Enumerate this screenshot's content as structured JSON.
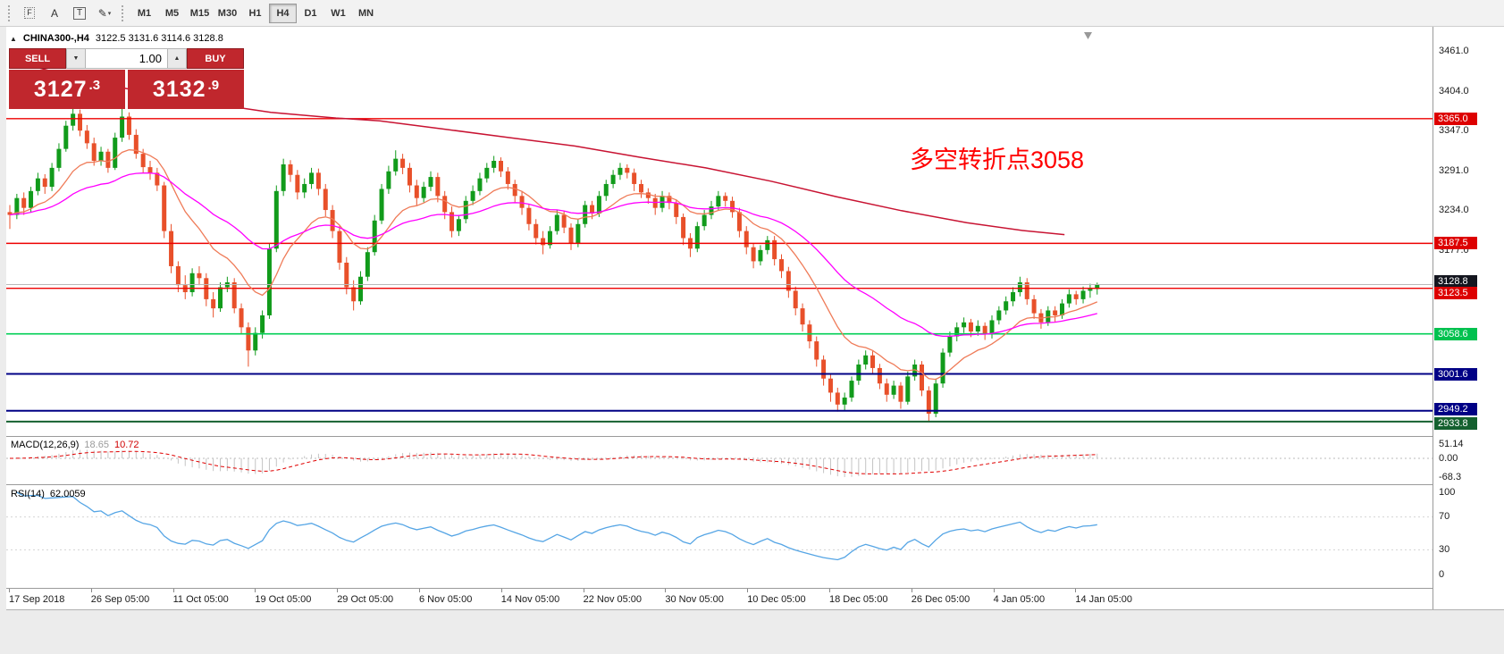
{
  "glyphs": {
    "panel_toggle": "▲",
    "caret_down": "▼",
    "caret_up": "▲",
    "caret_small": "▾"
  },
  "colors": {
    "candle_up": "#119b1b",
    "candle_down": "#e8502a",
    "ma_fast": "#ef7b58",
    "ma_medium": "#ff00ff",
    "ma_slow": "#c81332",
    "macd_hist": "#c4c4c4",
    "macd_signal": "#e00000",
    "rsi_line": "#55a5e5",
    "accent_red": "#c0272d",
    "annotation_red": "#ff0000"
  },
  "toolbar": {
    "icons": [
      {
        "name": "dotted-grid-f-icon",
        "glyph": "F",
        "dotted": true
      },
      {
        "name": "text-annotation-icon",
        "glyph": "A"
      },
      {
        "name": "text-box-icon",
        "glyph": "T",
        "boxed": true
      },
      {
        "name": "draw-tools-icon",
        "glyph": "✎",
        "has_caret": true
      }
    ],
    "timeframes": [
      {
        "label": "M1"
      },
      {
        "label": "M5"
      },
      {
        "label": "M15"
      },
      {
        "label": "M30"
      },
      {
        "label": "H1"
      },
      {
        "label": "H4",
        "active": true
      },
      {
        "label": "D1"
      },
      {
        "label": "W1"
      },
      {
        "label": "MN"
      }
    ]
  },
  "header": {
    "symbol": "CHINA300-,H4",
    "ohlc": "3122.5 3131.6 3114.6 3128.8"
  },
  "trade_panel": {
    "sell_label": "SELL",
    "buy_label": "BUY",
    "volume": "1.00",
    "sell_price_main": "3127",
    "sell_price_frac": ".3",
    "buy_price_main": "3132",
    "buy_price_frac": ".9"
  },
  "annotation": {
    "text": "多空转折点3058",
    "color": "#ff0000"
  },
  "indicators": {
    "macd": {
      "label": "MACD(12,26,9)",
      "value_main": "18.65",
      "value_signal": "10.72"
    },
    "rsi": {
      "label": "RSI(14)",
      "value": "62.0059"
    }
  },
  "chart_data": {
    "type": "candlestick",
    "symbol": "CHINA300-",
    "timeframe": "H4",
    "price_ticks": [
      3461.0,
      3404.0,
      3347.0,
      3291.0,
      3234.0,
      3177.0
    ],
    "levels": [
      {
        "price": 3365.0,
        "label": "3365.0",
        "color": "#ee0000",
        "tag_bg": "#dd0000",
        "width": 1.4
      },
      {
        "price": 3187.5,
        "label": "3187.5",
        "color": "#ee0000",
        "tag_bg": "#dd0000",
        "width": 1.4
      },
      {
        "price": 3128.8,
        "label": "3128.8",
        "color": "#b8b8b8",
        "tag_bg": "#14161f",
        "width": 1,
        "tag_dy": -4
      },
      {
        "price": 3123.5,
        "label": "3123.5",
        "color": "#ee0000",
        "tag_bg": "#dd0000",
        "width": 1.4,
        "tag_dy": 5
      },
      {
        "price": 3058.6,
        "label": "3058.6",
        "color": "#00cf55",
        "tag_bg": "#00c14f",
        "width": 1.6
      },
      {
        "price": 3001.6,
        "label": "3001.6",
        "color": "#000085",
        "tag_bg": "#000085",
        "width": 2
      },
      {
        "price": 2949.2,
        "label": "2949.2",
        "color": "#000085",
        "tag_bg": "#000085",
        "width": 2,
        "tag_dy": -2
      },
      {
        "price": 2933.8,
        "label": "2933.8",
        "color": "#14602f",
        "tag_bg": "#14602f",
        "width": 2,
        "tag_dy": 2
      }
    ],
    "ma_lines": [
      {
        "name": "ma-fast-coral",
        "color": "#ef7b58",
        "period": 13
      },
      {
        "name": "ma-medium-magenta",
        "color": "#ff00ff",
        "period": 34
      },
      {
        "name": "ma-slow-darkred",
        "color": "#c81332",
        "points": [
          [
            0,
            3448
          ],
          [
            0.04,
            3432
          ],
          [
            0.1,
            3410
          ],
          [
            0.17,
            3390
          ],
          [
            0.24,
            3374
          ],
          [
            0.3,
            3366
          ],
          [
            0.34,
            3362
          ],
          [
            0.4,
            3350
          ],
          [
            0.46,
            3338
          ],
          [
            0.52,
            3326
          ],
          [
            0.58,
            3310
          ],
          [
            0.64,
            3295
          ],
          [
            0.7,
            3276
          ],
          [
            0.76,
            3254
          ],
          [
            0.82,
            3234
          ],
          [
            0.88,
            3217
          ],
          [
            0.93,
            3206
          ],
          [
            0.97,
            3200
          ]
        ]
      }
    ],
    "macd": {
      "fast": 12,
      "slow": 26,
      "signal": 9,
      "ticks": [
        {
          "v": 51.14,
          "label": "51.14"
        },
        {
          "v": 0,
          "label": "0.00"
        },
        {
          "v": -68.3,
          "label": "-68.3"
        }
      ]
    },
    "rsi": {
      "period": 14,
      "levels": [
        70,
        30
      ],
      "ticks": [
        {
          "v": 100,
          "label": "100"
        },
        {
          "v": 70,
          "label": "70"
        },
        {
          "v": 30,
          "label": "30"
        },
        {
          "v": 0,
          "label": "0"
        }
      ]
    },
    "time_labels": [
      "17 Sep 2018",
      "26 Sep 05:00",
      "11 Oct 05:00",
      "19 Oct 05:00",
      "29 Oct 05:00",
      "6 Nov 05:00",
      "14 Nov 05:00",
      "22 Nov 05:00",
      "30 Nov 05:00",
      "10 Dec 05:00",
      "18 Dec 05:00",
      "26 Dec 05:00",
      "4 Jan 05:00",
      "14 Jan 05:00"
    ],
    "candles": [
      [
        3232,
        3242,
        3208,
        3228
      ],
      [
        3228,
        3258,
        3222,
        3252
      ],
      [
        3252,
        3260,
        3228,
        3238
      ],
      [
        3238,
        3268,
        3232,
        3262
      ],
      [
        3262,
        3288,
        3256,
        3280
      ],
      [
        3280,
        3286,
        3258,
        3268
      ],
      [
        3268,
        3302,
        3262,
        3295
      ],
      [
        3295,
        3330,
        3290,
        3322
      ],
      [
        3322,
        3362,
        3318,
        3355
      ],
      [
        3355,
        3385,
        3348,
        3372
      ],
      [
        3372,
        3378,
        3340,
        3348
      ],
      [
        3348,
        3356,
        3322,
        3330
      ],
      [
        3330,
        3338,
        3298,
        3305
      ],
      [
        3305,
        3325,
        3298,
        3318
      ],
      [
        3318,
        3322,
        3288,
        3295
      ],
      [
        3295,
        3345,
        3292,
        3338
      ],
      [
        3338,
        3383,
        3332,
        3368
      ],
      [
        3368,
        3374,
        3335,
        3342
      ],
      [
        3342,
        3350,
        3308,
        3315
      ],
      [
        3315,
        3322,
        3288,
        3296
      ],
      [
        3296,
        3305,
        3278,
        3288
      ],
      [
        3288,
        3295,
        3262,
        3270
      ],
      [
        3270,
        3275,
        3195,
        3205
      ],
      [
        3205,
        3215,
        3145,
        3155
      ],
      [
        3155,
        3162,
        3118,
        3128
      ],
      [
        3128,
        3142,
        3108,
        3118
      ],
      [
        3118,
        3152,
        3112,
        3145
      ],
      [
        3145,
        3155,
        3128,
        3138
      ],
      [
        3138,
        3145,
        3098,
        3108
      ],
      [
        3108,
        3118,
        3082,
        3095
      ],
      [
        3095,
        3132,
        3090,
        3125
      ],
      [
        3125,
        3140,
        3118,
        3132
      ],
      [
        3132,
        3138,
        3088,
        3095
      ],
      [
        3095,
        3102,
        3058,
        3068
      ],
      [
        3068,
        3075,
        3012,
        3035
      ],
      [
        3035,
        3068,
        3028,
        3060
      ],
      [
        3060,
        3092,
        3052,
        3085
      ],
      [
        3085,
        3188,
        3080,
        3180
      ],
      [
        3180,
        3270,
        3175,
        3262
      ],
      [
        3262,
        3308,
        3255,
        3300
      ],
      [
        3300,
        3306,
        3275,
        3285
      ],
      [
        3285,
        3292,
        3250,
        3260
      ],
      [
        3260,
        3280,
        3252,
        3272
      ],
      [
        3272,
        3295,
        3265,
        3288
      ],
      [
        3288,
        3294,
        3256,
        3265
      ],
      [
        3265,
        3272,
        3226,
        3235
      ],
      [
        3235,
        3242,
        3195,
        3205
      ],
      [
        3205,
        3212,
        3150,
        3160
      ],
      [
        3160,
        3168,
        3115,
        3125
      ],
      [
        3125,
        3135,
        3092,
        3105
      ],
      [
        3105,
        3148,
        3100,
        3140
      ],
      [
        3140,
        3182,
        3134,
        3175
      ],
      [
        3175,
        3228,
        3170,
        3220
      ],
      [
        3220,
        3272,
        3215,
        3265
      ],
      [
        3265,
        3298,
        3258,
        3290
      ],
      [
        3290,
        3320,
        3284,
        3308
      ],
      [
        3308,
        3315,
        3286,
        3295
      ],
      [
        3295,
        3302,
        3260,
        3270
      ],
      [
        3270,
        3278,
        3242,
        3252
      ],
      [
        3252,
        3275,
        3246,
        3268
      ],
      [
        3268,
        3290,
        3262,
        3282
      ],
      [
        3282,
        3288,
        3246,
        3255
      ],
      [
        3255,
        3262,
        3222,
        3232
      ],
      [
        3232,
        3240,
        3196,
        3205
      ],
      [
        3205,
        3228,
        3198,
        3222
      ],
      [
        3222,
        3255,
        3216,
        3248
      ],
      [
        3248,
        3270,
        3242,
        3262
      ],
      [
        3262,
        3288,
        3256,
        3280
      ],
      [
        3280,
        3302,
        3274,
        3295
      ],
      [
        3295,
        3312,
        3288,
        3305
      ],
      [
        3305,
        3310,
        3282,
        3290
      ],
      [
        3290,
        3296,
        3264,
        3272
      ],
      [
        3272,
        3278,
        3246,
        3255
      ],
      [
        3255,
        3262,
        3228,
        3238
      ],
      [
        3238,
        3244,
        3206,
        3215
      ],
      [
        3215,
        3222,
        3186,
        3195
      ],
      [
        3195,
        3205,
        3172,
        3185
      ],
      [
        3185,
        3212,
        3180,
        3205
      ],
      [
        3205,
        3235,
        3200,
        3228
      ],
      [
        3228,
        3234,
        3202,
        3210
      ],
      [
        3210,
        3216,
        3178,
        3188
      ],
      [
        3188,
        3222,
        3182,
        3215
      ],
      [
        3215,
        3248,
        3210,
        3242
      ],
      [
        3242,
        3248,
        3222,
        3230
      ],
      [
        3230,
        3262,
        3225,
        3255
      ],
      [
        3255,
        3278,
        3248,
        3272
      ],
      [
        3272,
        3292,
        3266,
        3285
      ],
      [
        3285,
        3302,
        3278,
        3295
      ],
      [
        3295,
        3300,
        3280,
        3288
      ],
      [
        3288,
        3294,
        3262,
        3272
      ],
      [
        3272,
        3278,
        3252,
        3260
      ],
      [
        3260,
        3266,
        3244,
        3252
      ],
      [
        3252,
        3258,
        3228,
        3238
      ],
      [
        3238,
        3262,
        3232,
        3255
      ],
      [
        3255,
        3260,
        3236,
        3245
      ],
      [
        3245,
        3250,
        3215,
        3225
      ],
      [
        3225,
        3230,
        3185,
        3195
      ],
      [
        3195,
        3202,
        3168,
        3180
      ],
      [
        3180,
        3218,
        3175,
        3212
      ],
      [
        3212,
        3235,
        3206,
        3228
      ],
      [
        3228,
        3248,
        3222,
        3240
      ],
      [
        3240,
        3262,
        3234,
        3255
      ],
      [
        3255,
        3260,
        3240,
        3248
      ],
      [
        3248,
        3254,
        3224,
        3232
      ],
      [
        3232,
        3238,
        3196,
        3205
      ],
      [
        3205,
        3212,
        3172,
        3182
      ],
      [
        3182,
        3188,
        3152,
        3162
      ],
      [
        3162,
        3185,
        3156,
        3178
      ],
      [
        3178,
        3198,
        3172,
        3192
      ],
      [
        3192,
        3198,
        3156,
        3165
      ],
      [
        3165,
        3172,
        3138,
        3148
      ],
      [
        3148,
        3154,
        3110,
        3120
      ],
      [
        3120,
        3126,
        3085,
        3095
      ],
      [
        3095,
        3102,
        3062,
        3072
      ],
      [
        3072,
        3078,
        3038,
        3048
      ],
      [
        3048,
        3055,
        3012,
        3022
      ],
      [
        3022,
        3028,
        2985,
        2995
      ],
      [
        2995,
        3002,
        2962,
        2975
      ],
      [
        2975,
        2982,
        2948,
        2958
      ],
      [
        2958,
        2975,
        2950,
        2968
      ],
      [
        2968,
        2998,
        2962,
        2992
      ],
      [
        2992,
        3022,
        2986,
        3015
      ],
      [
        3015,
        3035,
        3008,
        3028
      ],
      [
        3028,
        3034,
        3002,
        3010
      ],
      [
        3010,
        3016,
        2980,
        2988
      ],
      [
        2988,
        2995,
        2962,
        2972
      ],
      [
        2972,
        2992,
        2966,
        2985
      ],
      [
        2985,
        2990,
        2952,
        2962
      ],
      [
        2962,
        3005,
        2958,
        2998
      ],
      [
        2998,
        3022,
        2992,
        3015
      ],
      [
        3015,
        3020,
        2970,
        2978
      ],
      [
        2978,
        2984,
        2934,
        2945
      ],
      [
        2945,
        2995,
        2940,
        2988
      ],
      [
        2988,
        3038,
        2982,
        3032
      ],
      [
        3032,
        3062,
        3026,
        3055
      ],
      [
        3055,
        3075,
        3048,
        3068
      ],
      [
        3068,
        3082,
        3060,
        3075
      ],
      [
        3075,
        3080,
        3054,
        3062
      ],
      [
        3062,
        3078,
        3056,
        3070
      ],
      [
        3070,
        3075,
        3050,
        3058
      ],
      [
        3058,
        3085,
        3052,
        3078
      ],
      [
        3078,
        3098,
        3072,
        3092
      ],
      [
        3092,
        3112,
        3086,
        3105
      ],
      [
        3105,
        3125,
        3098,
        3118
      ],
      [
        3118,
        3140,
        3112,
        3132
      ],
      [
        3132,
        3138,
        3100,
        3108
      ],
      [
        3108,
        3114,
        3080,
        3088
      ],
      [
        3088,
        3094,
        3066,
        3075
      ],
      [
        3075,
        3098,
        3070,
        3092
      ],
      [
        3092,
        3098,
        3076,
        3085
      ],
      [
        3085,
        3108,
        3080,
        3102
      ],
      [
        3102,
        3122,
        3096,
        3115
      ],
      [
        3115,
        3120,
        3100,
        3108
      ],
      [
        3108,
        3126,
        3102,
        3120
      ],
      [
        3120,
        3130,
        3110,
        3122.5
      ],
      [
        3122.5,
        3131.6,
        3114.6,
        3128.8
      ]
    ]
  }
}
